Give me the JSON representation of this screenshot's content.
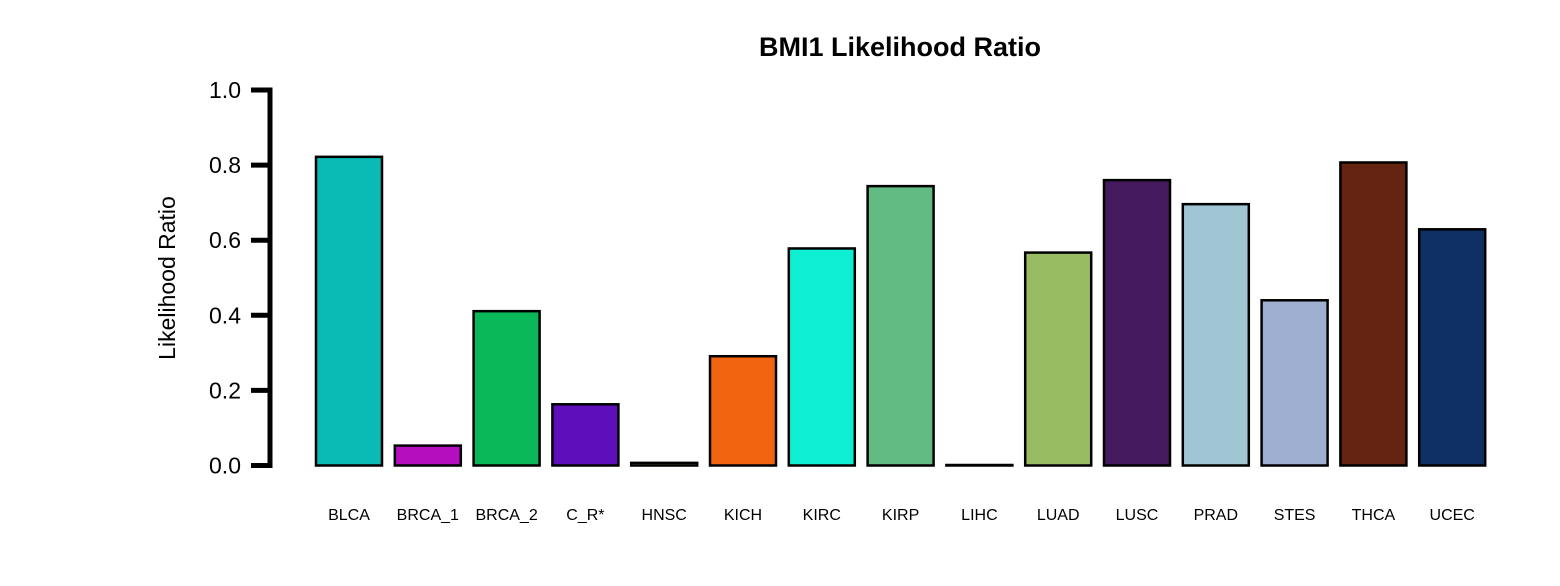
{
  "chart_data": {
    "type": "bar",
    "title": "BMI1 Likelihood Ratio",
    "xlabel": "",
    "ylabel": "Likelihood Ratio",
    "ylim": [
      0,
      1.0
    ],
    "yticks": [
      "0.0",
      "0.2",
      "0.4",
      "0.6",
      "0.8",
      "1.0"
    ],
    "grid": false,
    "categories": [
      "BLCA",
      "BRCA_1",
      "BRCA_2",
      "C_R*",
      "HNSC",
      "KICH",
      "KIRC",
      "KIRP",
      "LIHC",
      "LUAD",
      "LUSC",
      "PRAD",
      "STES",
      "THCA",
      "UCEC"
    ],
    "values": [
      0.822,
      0.053,
      0.411,
      0.163,
      0.007,
      0.291,
      0.578,
      0.744,
      0.0,
      0.567,
      0.76,
      0.696,
      0.44,
      0.807,
      0.629
    ],
    "colors": [
      "#0ABAB5",
      "#B40EBE",
      "#0AB85A",
      "#5E0EBB",
      "#E8E07A",
      "#F26410",
      "#0EEED2",
      "#62BB82",
      "#F0F0F0",
      "#98BC62",
      "#451A5E",
      "#A0C6D4",
      "#9FAFD2",
      "#652312",
      "#0E3062"
    ]
  }
}
